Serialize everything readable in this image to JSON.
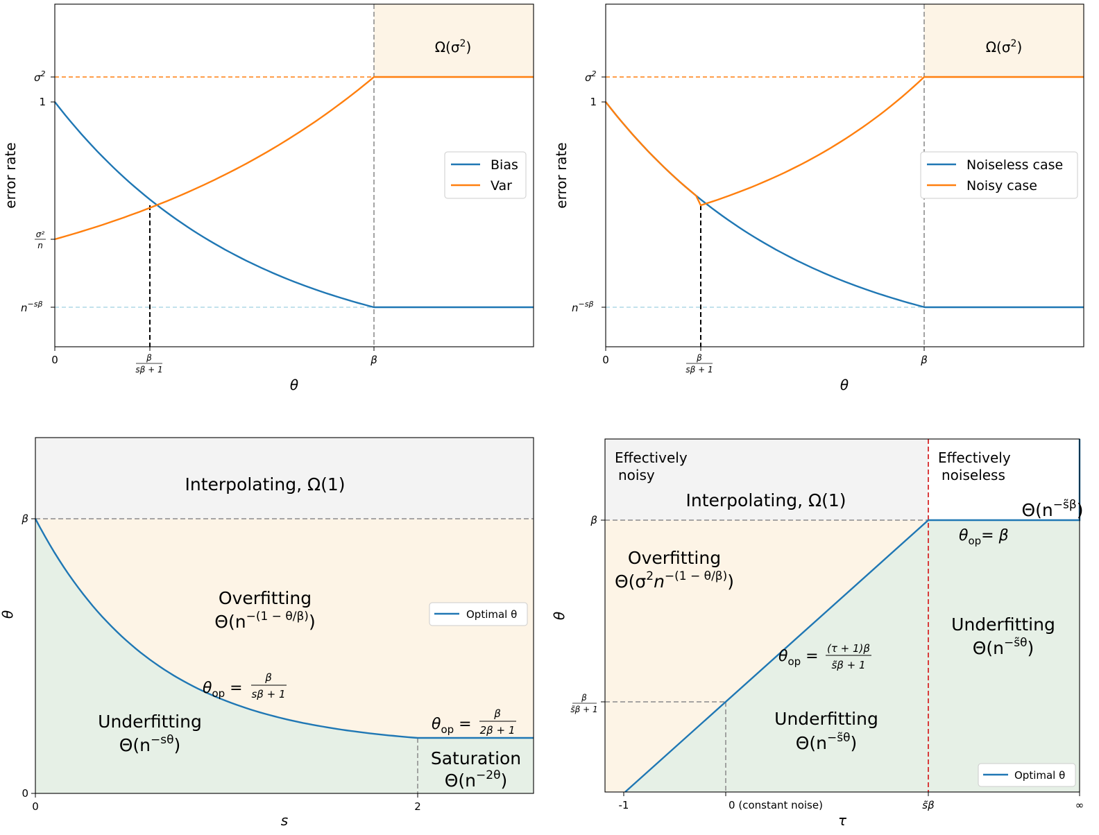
{
  "colors": {
    "blue": "#1f77b4",
    "orange": "#ff7f0e",
    "overfit_fill": "#fdf4e6",
    "underfit_fill": "#e6f0e6",
    "interp_fill": "#f3f3f3",
    "light_blue_dash": "#add8e6",
    "red_dash": "#d62728"
  },
  "chart_data": [
    {
      "type": "line",
      "panel": "top-left",
      "xlabel": "θ",
      "ylabel": "error rate",
      "x_ticks": [
        "0",
        "β/(sβ+1)",
        "β"
      ],
      "y_ticks": [
        "σ²",
        "1",
        "σ²/n",
        "n^{-sβ}"
      ],
      "region_label": "Ω(σ²)",
      "legend": {
        "placement": "center-right",
        "entries": [
          "Bias",
          "Var"
        ]
      },
      "series": [
        {
          "name": "Bias",
          "color": "#1f77b4",
          "description": "decreasing from 1 at θ=0 to n^{-sβ} at θ=β, then flat"
        },
        {
          "name": "Var",
          "color": "#ff7f0e",
          "description": "increasing from σ²/n at θ=0 to σ² at θ=β, then flat"
        }
      ]
    },
    {
      "type": "line",
      "panel": "top-right",
      "xlabel": "θ",
      "ylabel": "error rate",
      "x_ticks": [
        "0",
        "β/(sβ+1)",
        "β"
      ],
      "y_ticks": [
        "σ²",
        "1",
        "n^{-sβ}"
      ],
      "region_label": "Ω(σ²)",
      "legend": {
        "placement": "center-right",
        "entries": [
          "Noiseless case",
          "Noisy case"
        ]
      },
      "series": [
        {
          "name": "Noiseless case",
          "color": "#1f77b4"
        },
        {
          "name": "Noisy case",
          "color": "#ff7f0e"
        }
      ]
    },
    {
      "type": "area",
      "panel": "bottom-left",
      "xlabel": "s",
      "ylabel": "θ",
      "x_ticks": [
        "0",
        "2"
      ],
      "y_ticks": [
        "0",
        "β"
      ],
      "legend": {
        "placement": "center-right",
        "entries": [
          "Optimal θ"
        ]
      },
      "regions": [
        "Interpolating, Ω(1)",
        "Overfitting Θ(n^{-(1-θ/β)})",
        "Underfitting Θ(n^{-sθ})",
        "Saturation Θ(n^{-2θ})"
      ],
      "annotations": [
        "θ_op = β/(sβ+1)",
        "θ_op = β/(2β+1)"
      ]
    },
    {
      "type": "area",
      "panel": "bottom-right",
      "xlabel": "τ",
      "ylabel": "θ",
      "x_ticks": [
        "-1",
        "0 (constant noise)",
        "s̃β",
        "∞"
      ],
      "y_ticks": [
        "β",
        "β/(s̃β+1)"
      ],
      "legend": {
        "placement": "bottom-right",
        "entries": [
          "Optimal θ"
        ]
      },
      "regions": [
        "Effectively noisy",
        "Effectively noiseless",
        "Interpolating, Ω(1)",
        "Overfitting Θ(σ²n^{-(1-θ/β)})",
        "Underfitting Θ(n^{-s̃θ})",
        "Underfitting Θ(n^{-s̃θ})"
      ],
      "annotations": [
        "Θ(n^{-s̃β})",
        "θ_op = β",
        "θ_op = (τ+1)β/(s̃β+1)"
      ]
    }
  ],
  "panel1": {
    "xlabel": "θ",
    "ylabel": "error rate",
    "tick_x0": "0",
    "tick_xb": "β",
    "tick_xfrac_num": "β",
    "tick_xfrac_den": "sβ + 1",
    "tick_ysig": "σ",
    "tick_y1": "1",
    "tick_ysn_num": "σ²",
    "tick_ysn_den": "n",
    "tick_yn": "n",
    "tick_yn_exp": "−sβ",
    "omega": "Ω(σ",
    "omega_end": ")",
    "legend1": "Bias",
    "legend2": "Var"
  },
  "panel2": {
    "xlabel": "θ",
    "ylabel": "error rate",
    "tick_x0": "0",
    "tick_xb": "β",
    "tick_xfrac_num": "β",
    "tick_xfrac_den": "sβ + 1",
    "tick_ysig": "σ",
    "tick_y1": "1",
    "tick_yn": "n",
    "tick_yn_exp": "−sβ",
    "omega": "Ω(σ",
    "omega_end": ")",
    "legend1": "Noiseless case",
    "legend2": "Noisy case"
  },
  "panel3": {
    "xlabel": "s",
    "ylabel": "θ",
    "tick_x0": "0",
    "tick_x2": "2",
    "tick_y0": "0",
    "tick_yb": "β",
    "interp": "Interpolating, Ω(1)",
    "over1": "Overfitting",
    "over2a": "Θ(n",
    "over2exp": "−(1 − θ/β)",
    "over2b": ")",
    "under1": "Underfitting",
    "under2a": "Θ(n",
    "under2exp": "−sθ",
    "under2b": ")",
    "sat1": "Saturation",
    "sat2a": "Θ(n",
    "sat2exp": "−2θ",
    "sat2b": ")",
    "eq1_lhs": "θ",
    "eq1_sub": "op",
    "eq1_num": "β",
    "eq1_den": "sβ + 1",
    "eq2_lhs": "θ",
    "eq2_sub": "op",
    "eq2_num": "β",
    "eq2_den": "2β + 1",
    "legend": "Optimal θ"
  },
  "panel4": {
    "xlabel": "τ",
    "ylabel": "θ",
    "tick_xm1": "-1",
    "tick_x0": "0 (constant noise)",
    "tick_xsb": "s̃β",
    "tick_xinf": "∞",
    "tick_yb": "β",
    "tick_yfrac_num": "β",
    "tick_yfrac_den": "s̃β + 1",
    "noisy1": "Effectively",
    "noisy2": "noisy",
    "noiseless1": "Effectively",
    "noiseless2": "noiseless",
    "interp": "Interpolating, Ω(1)",
    "over1": "Overfitting",
    "over2a": "Θ(σ",
    "over2exp": "−(1 − θ/β)",
    "over2b": ")",
    "underR1": "Underfitting",
    "underR2a": "Θ(n",
    "underR2exp": "−s̃θ",
    "underR2b": ")",
    "underM1": "Underfitting",
    "underM2a": "Θ(n",
    "underM2exp": "−s̃θ",
    "underM2b": ")",
    "sat_a": "Θ(n",
    "sat_exp": "−s̃β",
    "sat_b": ")",
    "eqb_lhs": "θ",
    "eqb_sub": "op",
    "eqb_rhs": "= β",
    "eqt_lhs": "θ",
    "eqt_sub": "op",
    "eqt_num": "(τ + 1)β",
    "eqt_den": "s̃β + 1",
    "legend": "Optimal θ"
  }
}
